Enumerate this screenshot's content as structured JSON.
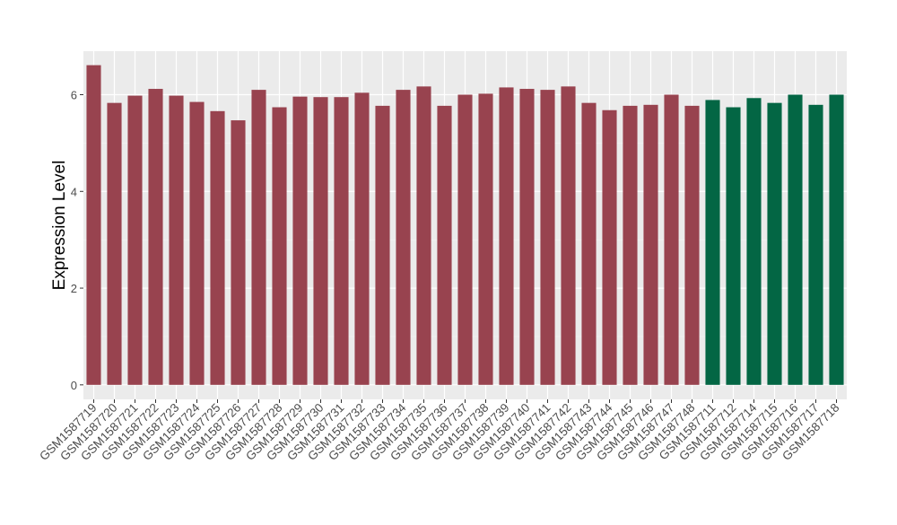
{
  "chart_data": {
    "type": "bar",
    "title": "",
    "xlabel": "",
    "ylabel": "Expression Level",
    "ylim": [
      -0.3,
      6.9
    ],
    "yticks": [
      0,
      2,
      4,
      6
    ],
    "ytick_labels": [
      "0",
      "2",
      "4",
      "6"
    ],
    "grid": true,
    "background": "#ebebeb",
    "categories": [
      "GSM1587719",
      "GSM1587720",
      "GSM1587721",
      "GSM1587722",
      "GSM1587723",
      "GSM1587724",
      "GSM1587725",
      "GSM1587726",
      "GSM1587727",
      "GSM1587728",
      "GSM1587729",
      "GSM1587730",
      "GSM1587731",
      "GSM1587732",
      "GSM1587733",
      "GSM1587734",
      "GSM1587735",
      "GSM1587736",
      "GSM1587737",
      "GSM1587738",
      "GSM1587739",
      "GSM1587740",
      "GSM1587741",
      "GSM1587742",
      "GSM1587743",
      "GSM1587744",
      "GSM1587745",
      "GSM1587746",
      "GSM1587747",
      "GSM1587748",
      "GSM1587711",
      "GSM1587712",
      "GSM1587714",
      "GSM1587715",
      "GSM1587716",
      "GSM1587717",
      "GSM1587718"
    ],
    "values": [
      6.61,
      5.83,
      5.98,
      6.12,
      5.98,
      5.85,
      5.66,
      5.47,
      6.1,
      5.74,
      5.96,
      5.95,
      5.95,
      6.04,
      5.77,
      6.1,
      6.17,
      5.77,
      6.0,
      6.02,
      6.15,
      6.12,
      6.1,
      6.17,
      5.83,
      5.68,
      5.77,
      5.79,
      6.0,
      5.77,
      5.89,
      5.74,
      5.93,
      5.83,
      6.0,
      5.79,
      6.0
    ],
    "colors": [
      "#98434f",
      "#98434f",
      "#98434f",
      "#98434f",
      "#98434f",
      "#98434f",
      "#98434f",
      "#98434f",
      "#98434f",
      "#98434f",
      "#98434f",
      "#98434f",
      "#98434f",
      "#98434f",
      "#98434f",
      "#98434f",
      "#98434f",
      "#98434f",
      "#98434f",
      "#98434f",
      "#98434f",
      "#98434f",
      "#98434f",
      "#98434f",
      "#98434f",
      "#98434f",
      "#98434f",
      "#98434f",
      "#98434f",
      "#98434f",
      "#036644",
      "#036644",
      "#036644",
      "#036644",
      "#036644",
      "#036644",
      "#036644"
    ]
  }
}
